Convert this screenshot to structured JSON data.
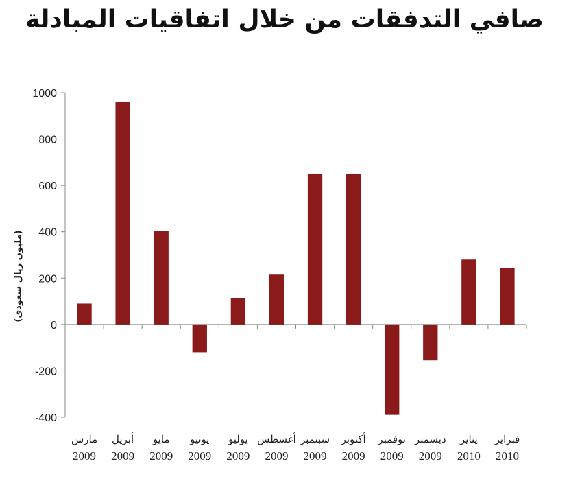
{
  "chart_data": {
    "type": "bar",
    "title": "صافي التدفقات من خلال اتفاقيات المبادلة",
    "ylabel": "(مليون ريال سعودي)",
    "xlabel": "",
    "ylim": [
      -400,
      1000
    ],
    "yticks": [
      "1000",
      "800",
      "600",
      "400",
      "200",
      "0",
      "-200",
      "-400"
    ],
    "grid": false,
    "bar_color": "#8B1A1A",
    "categories": [
      {
        "month": "مارس",
        "year": "2009"
      },
      {
        "month": "أبريل",
        "year": "2009"
      },
      {
        "month": "مايو",
        "year": "2009"
      },
      {
        "month": "يونيو",
        "year": "2009"
      },
      {
        "month": "يوليو",
        "year": "2009"
      },
      {
        "month": "أغسطس",
        "year": "2009"
      },
      {
        "month": "سبتمبر",
        "year": "2009"
      },
      {
        "month": "أكتوبر",
        "year": "2009"
      },
      {
        "month": "نوفمبر",
        "year": "2009"
      },
      {
        "month": "ديسمبر",
        "year": "2009"
      },
      {
        "month": "يناير",
        "year": "2010"
      },
      {
        "month": "فبراير",
        "year": "2010"
      }
    ],
    "values": [
      90,
      960,
      405,
      -120,
      115,
      215,
      650,
      650,
      -390,
      -155,
      280,
      245
    ]
  }
}
